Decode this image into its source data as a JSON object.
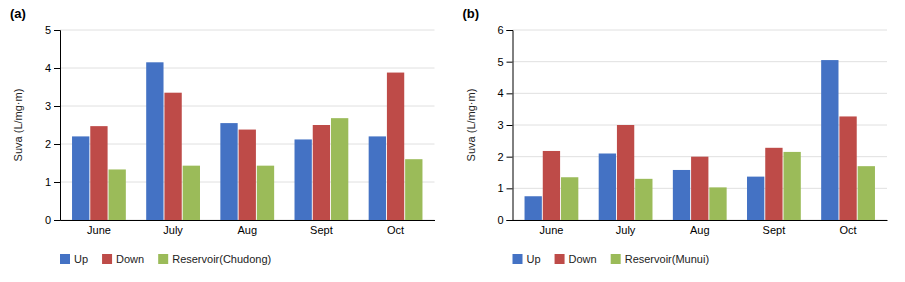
{
  "chart_data": [
    {
      "type": "bar",
      "title": "(a)",
      "categories": [
        "June",
        "July",
        "Aug",
        "Sept",
        "Oct"
      ],
      "series": [
        {
          "name": "Up",
          "color": "#4472C4",
          "values": [
            2.2,
            4.15,
            2.55,
            2.12,
            2.2
          ]
        },
        {
          "name": "Down",
          "color": "#BE4B48",
          "values": [
            2.47,
            3.35,
            2.38,
            2.5,
            3.88
          ]
        },
        {
          "name": "Reservoir(Chudong)",
          "color": "#9BBB59",
          "values": [
            1.33,
            1.43,
            1.43,
            2.68,
            1.6
          ]
        }
      ],
      "ylabel": "Suva (L/mg·m)",
      "ylim": [
        0,
        5
      ],
      "yticks": [
        0,
        1,
        2,
        3,
        4,
        5
      ],
      "grid": true,
      "legend": "bottom"
    },
    {
      "type": "bar",
      "title": "(b)",
      "categories": [
        "June",
        "July",
        "Aug",
        "Sept",
        "Oct"
      ],
      "series": [
        {
          "name": "Up",
          "color": "#4472C4",
          "values": [
            0.75,
            2.1,
            1.58,
            1.37,
            5.05
          ]
        },
        {
          "name": "Down",
          "color": "#BE4B48",
          "values": [
            2.18,
            3.0,
            2.0,
            2.28,
            3.27
          ]
        },
        {
          "name": "Reservoir(Munui)",
          "color": "#9BBB59",
          "values": [
            1.35,
            1.3,
            1.03,
            2.15,
            1.7
          ]
        }
      ],
      "ylabel": "Suva (L/mg·m)",
      "ylim": [
        0,
        6
      ],
      "yticks": [
        0,
        1,
        2,
        3,
        4,
        5,
        6
      ],
      "grid": true,
      "legend": "bottom"
    }
  ]
}
